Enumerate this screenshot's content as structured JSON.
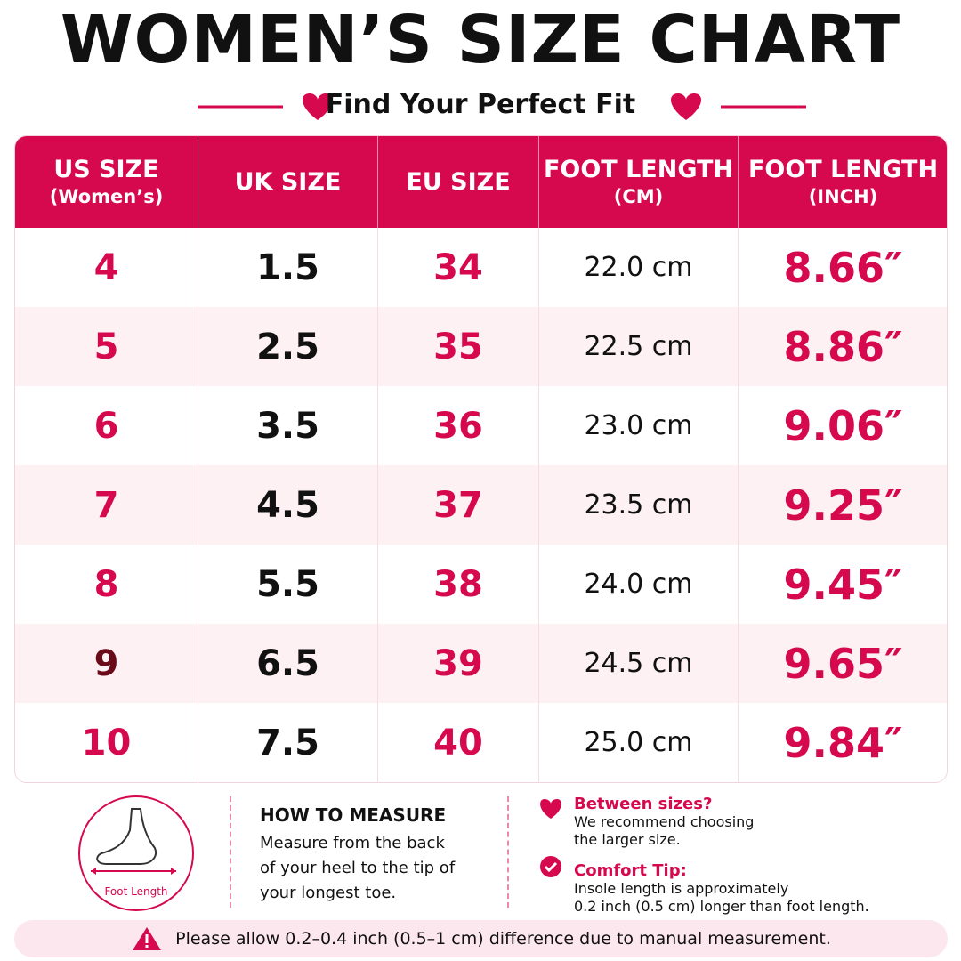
{
  "header": {
    "title": "WOMEN’S SIZE CHART",
    "subtitle": "Find Your Perfect Fit"
  },
  "table": {
    "headers": [
      [
        "US SIZE",
        "(Women’s)"
      ],
      [
        "UK SIZE"
      ],
      [
        "EU SIZE"
      ],
      [
        "FOOT LENGTH",
        "(CM)"
      ],
      [
        "FOOT LENGTH",
        "(INCH)"
      ]
    ],
    "rows": [
      [
        "4",
        "1.5",
        "34",
        "22.0 cm",
        "8.66″"
      ],
      [
        "5",
        "2.5",
        "35",
        "22.5 cm",
        "8.86″"
      ],
      [
        "6",
        "3.5",
        "36",
        "23.0 cm",
        "9.06″"
      ],
      [
        "7",
        "4.5",
        "37",
        "23.5 cm",
        "9.25″"
      ],
      [
        "8",
        "5.5",
        "38",
        "24.0 cm",
        "9.45″"
      ],
      [
        "9",
        "6.5",
        "39",
        "24.5 cm",
        "9.65″"
      ],
      [
        "10",
        "7.5",
        "40",
        "25.0 cm",
        "9.84″"
      ]
    ]
  },
  "measure": {
    "icon_label": "Foot Length",
    "title": "HOW TO MEASURE",
    "text": [
      "Measure from the back",
      "of your heel to the tip of",
      "your longest toe."
    ]
  },
  "tips": [
    {
      "title": "Between sizes?",
      "text": [
        "We recommend choosing",
        "the larger size."
      ]
    },
    {
      "title": "Comfort Tip:",
      "text": [
        "Insole length is approximately",
        "0.2 inch (0.5 cm) longer than foot length."
      ]
    }
  ],
  "footer": {
    "note": "Please allow 0.2–0.4 inch (0.5–1 cm) difference due to manual measurement."
  }
}
